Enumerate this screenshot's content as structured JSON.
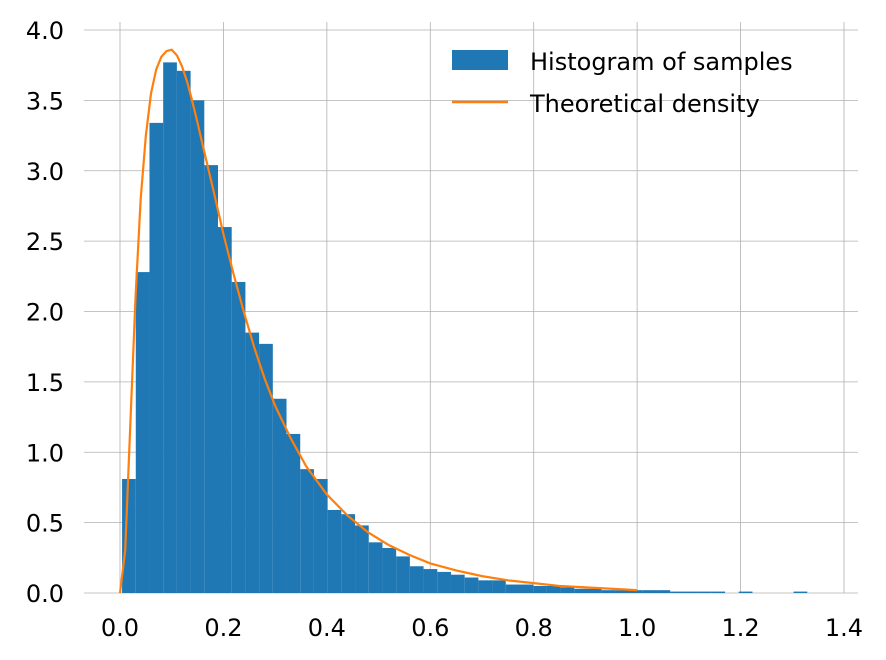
{
  "chart_data": {
    "type": "bar",
    "title": "",
    "xlabel": "",
    "ylabel": "",
    "xlim": [
      -0.07,
      1.43
    ],
    "ylim": [
      0,
      4.0
    ],
    "grid": true,
    "legend_position": "top-right",
    "x_ticks": [
      "0.0",
      "0.2",
      "0.4",
      "0.6",
      "0.8",
      "1.0",
      "1.2",
      "1.4"
    ],
    "y_ticks": [
      "0.0",
      "0.5",
      "1.0",
      "1.5",
      "2.0",
      "2.5",
      "3.0",
      "3.5",
      "4.0"
    ],
    "histogram": {
      "name": "Histogram of samples",
      "color": "#1f77b4",
      "bin_width": 0.0265,
      "bin_starts": [
        0.004,
        0.0305,
        0.057,
        0.0835,
        0.11,
        0.1365,
        0.163,
        0.1895,
        0.216,
        0.2425,
        0.269,
        0.2955,
        0.322,
        0.3485,
        0.375,
        0.4015,
        0.428,
        0.4545,
        0.481,
        0.5075,
        0.534,
        0.5605,
        0.587,
        0.6135,
        0.64,
        0.6665,
        0.693,
        0.7195,
        0.746,
        0.7725,
        0.799,
        0.8255,
        0.852,
        0.8785,
        0.905,
        0.9315,
        0.958,
        0.9845,
        1.011,
        1.0375,
        1.064,
        1.0905,
        1.117,
        1.1435,
        1.17,
        1.1965,
        1.223,
        1.2495,
        1.276,
        1.3025,
        1.329
      ],
      "densities": [
        0.81,
        2.28,
        3.34,
        3.77,
        3.71,
        3.5,
        3.04,
        2.6,
        2.21,
        1.85,
        1.77,
        1.38,
        1.13,
        0.88,
        0.81,
        0.59,
        0.56,
        0.48,
        0.36,
        0.32,
        0.26,
        0.19,
        0.17,
        0.15,
        0.13,
        0.11,
        0.09,
        0.09,
        0.06,
        0.06,
        0.05,
        0.05,
        0.04,
        0.03,
        0.03,
        0.02,
        0.02,
        0.02,
        0.02,
        0.02,
        0.01,
        0.01,
        0.01,
        0.01,
        0.0,
        0.01,
        0.0,
        0.0,
        0.0,
        0.01,
        0.0
      ]
    },
    "density_curve": {
      "name": "Theoretical density",
      "color": "#ff7f0e",
      "x": [
        0.0,
        0.01,
        0.02,
        0.03,
        0.04,
        0.05,
        0.06,
        0.07,
        0.08,
        0.09,
        0.1,
        0.11,
        0.12,
        0.13,
        0.14,
        0.15,
        0.16,
        0.18,
        0.2,
        0.22,
        0.24,
        0.26,
        0.28,
        0.3,
        0.33,
        0.36,
        0.4,
        0.44,
        0.48,
        0.52,
        0.56,
        0.6,
        0.65,
        0.7,
        0.75,
        0.8,
        0.85,
        0.9,
        0.95,
        1.0
      ],
      "y": [
        0.0,
        0.3,
        1.2,
        2.1,
        2.8,
        3.25,
        3.55,
        3.72,
        3.81,
        3.85,
        3.86,
        3.82,
        3.74,
        3.63,
        3.49,
        3.34,
        3.18,
        2.87,
        2.55,
        2.26,
        1.99,
        1.74,
        1.52,
        1.33,
        1.1,
        0.9,
        0.7,
        0.55,
        0.43,
        0.34,
        0.27,
        0.21,
        0.16,
        0.12,
        0.09,
        0.07,
        0.05,
        0.04,
        0.03,
        0.02
      ]
    }
  }
}
